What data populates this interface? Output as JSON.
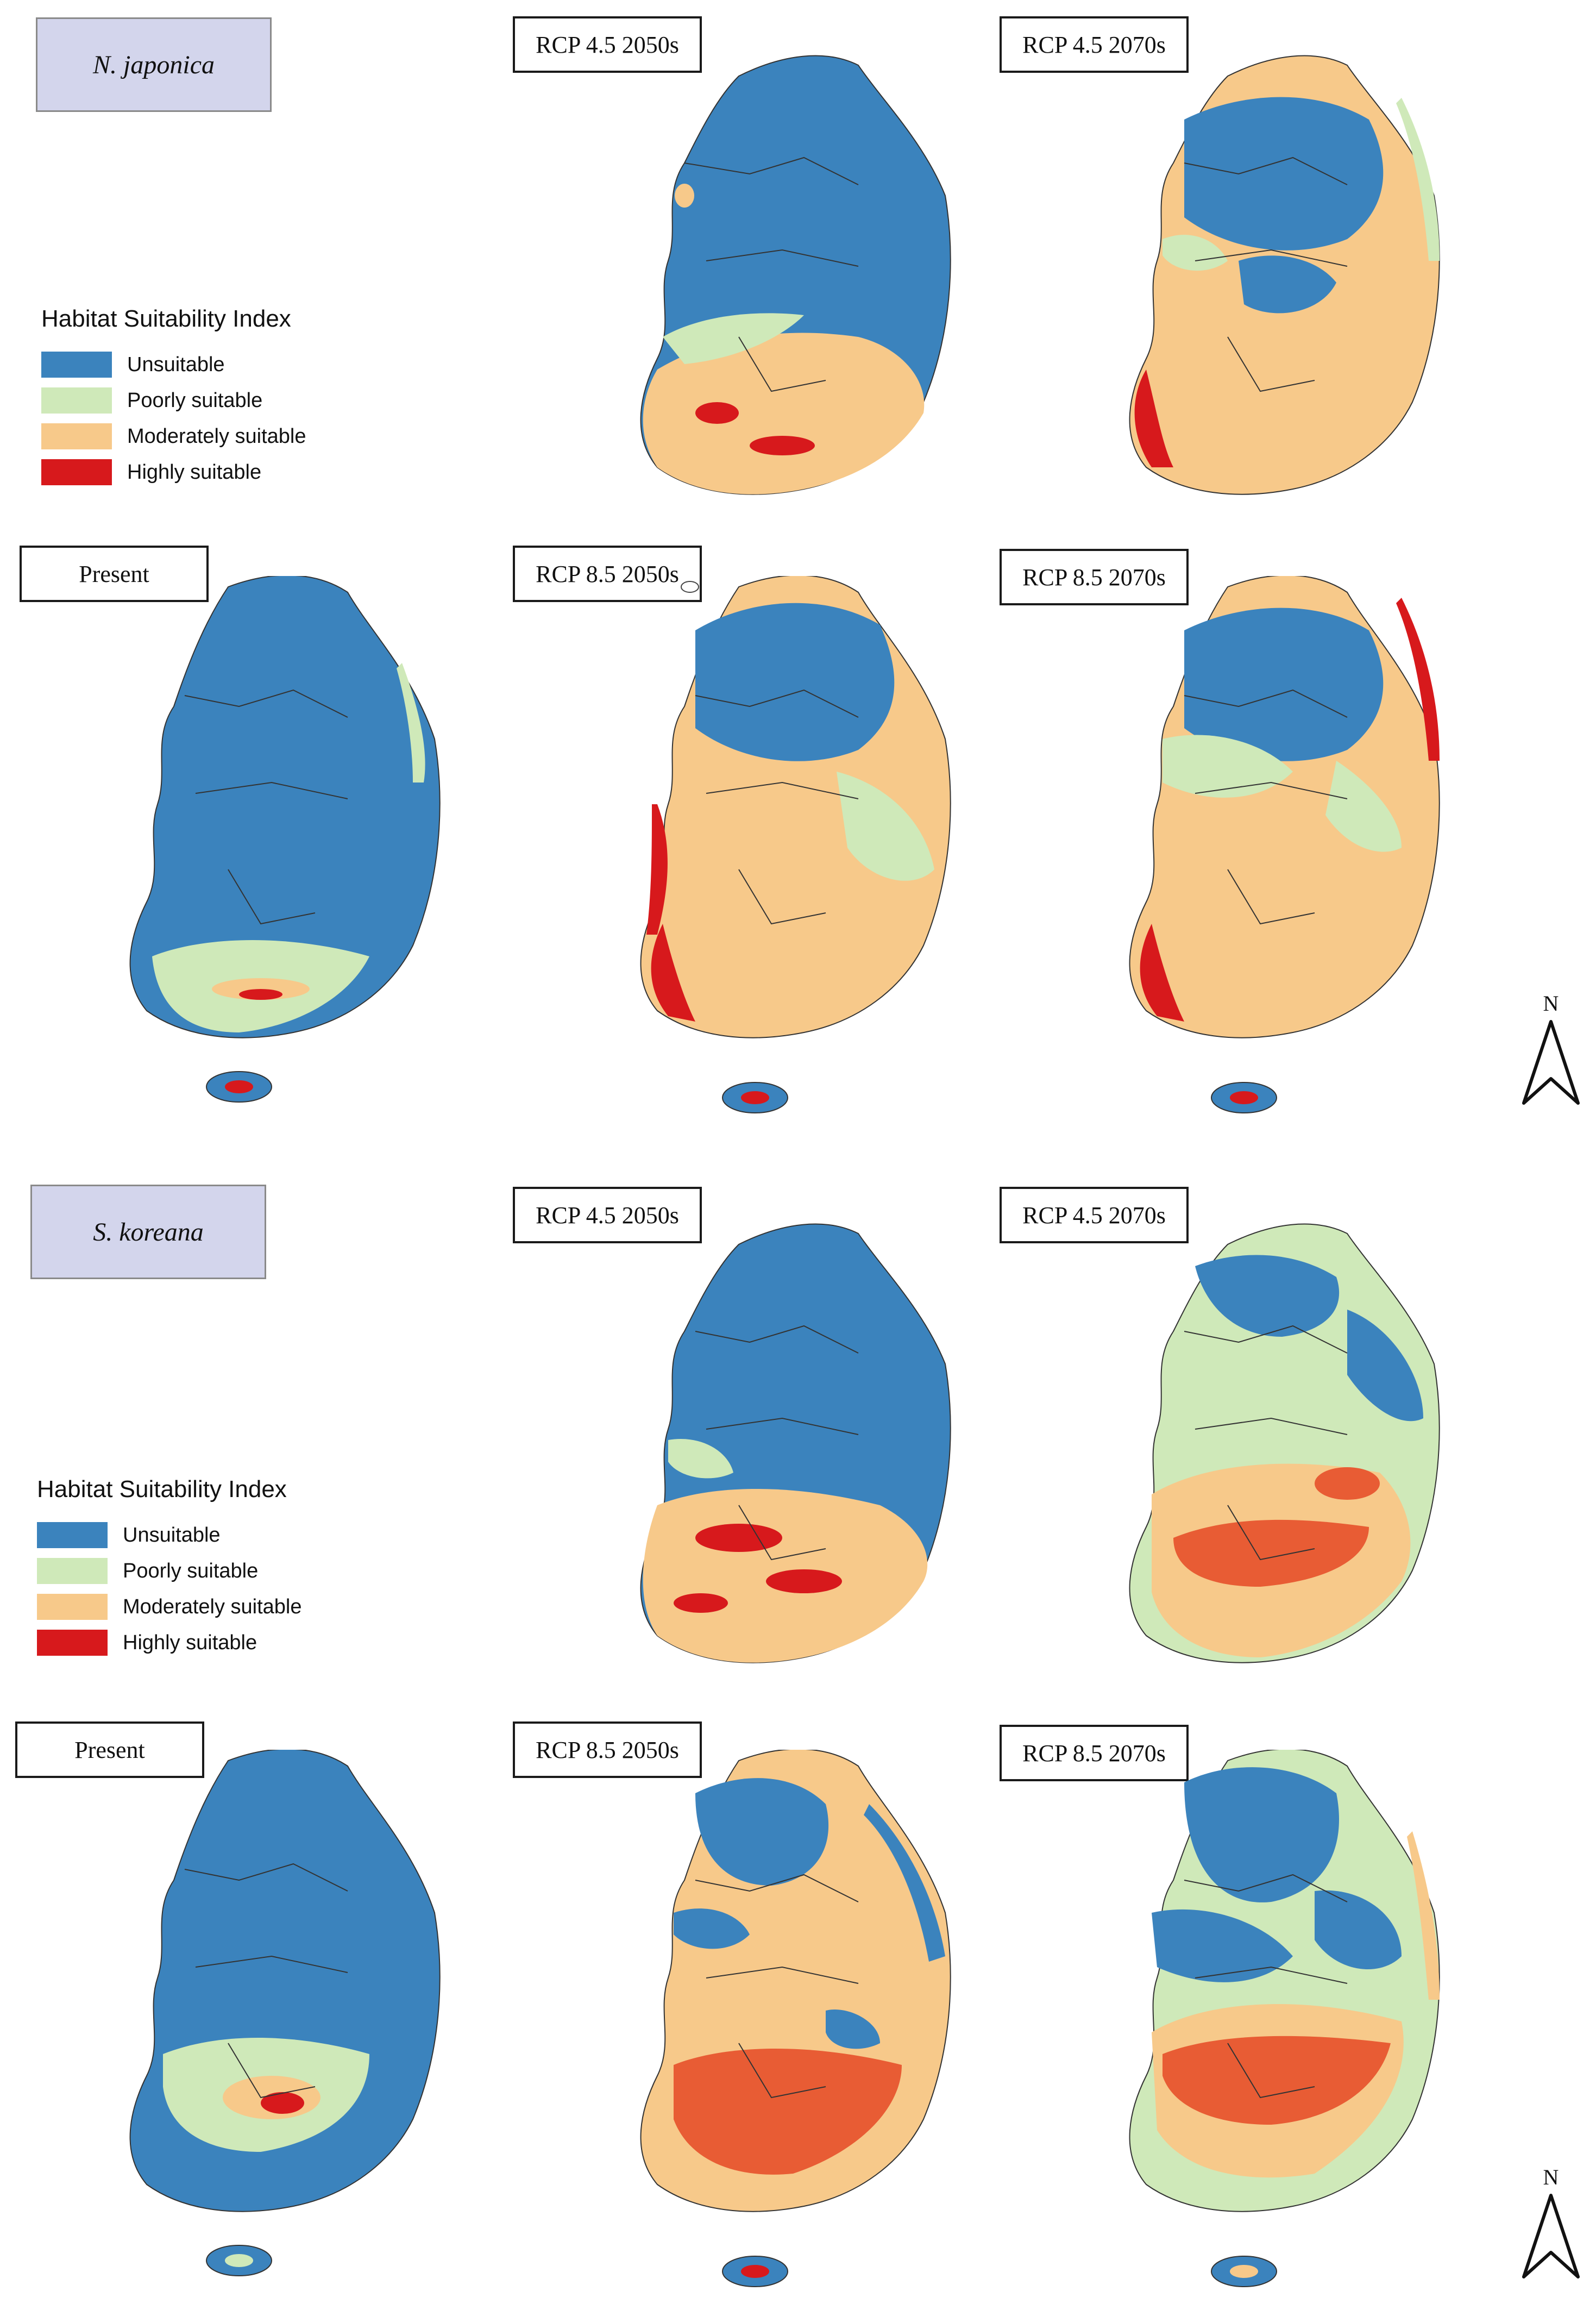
{
  "classes": [
    {
      "label": "Unsuitable",
      "color": "#3b83bd"
    },
    {
      "label": "Poorly suitable",
      "color": "#cfe9b9"
    },
    {
      "label": "Moderately suitable",
      "color": "#f7c98a"
    },
    {
      "label": "Highly suitable",
      "color": "#d7191c"
    }
  ],
  "north_label": "N",
  "sections": [
    {
      "species": "N. japonica",
      "legend_title": "Habitat Suitability Index",
      "panels": {
        "present": "Present",
        "rcp45_2050": "RCP 4.5 2050s",
        "rcp45_2070": "RCP 4.5 2070s",
        "rcp85_2050": "RCP 8.5 2050s",
        "rcp85_2070": "RCP 8.5 2070s"
      }
    },
    {
      "species": "S. koreana",
      "legend_title": "Habitat Suitability Index",
      "panels": {
        "present": "Present",
        "rcp45_2050": "RCP 4.5 2050s",
        "rcp45_2070": "RCP 4.5 2070s",
        "rcp85_2050": "RCP 8.5 2050s",
        "rcp85_2070": "RCP 8.5 2070s"
      }
    }
  ]
}
